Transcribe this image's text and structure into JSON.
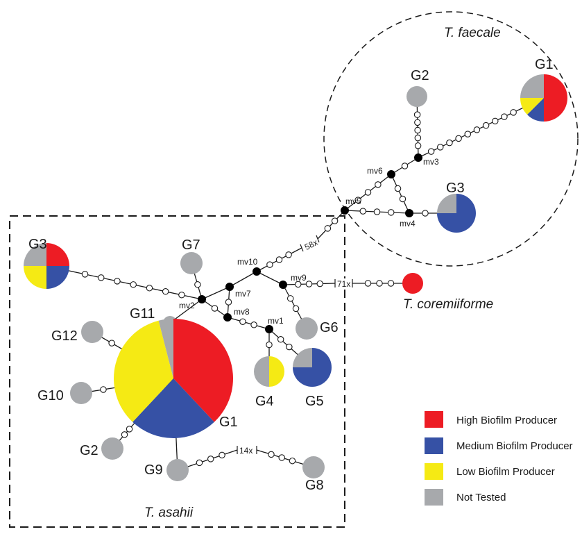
{
  "colors": {
    "high": "#ed1c24",
    "medium": "#3651a5",
    "low": "#f5ea14",
    "not_tested": "#a7a9ac",
    "median_vector": "#000000",
    "step": "#ffffff",
    "line": "#1a1a1a"
  },
  "clusters": {
    "faecale": "T. faecale",
    "asahii": "T. asahii",
    "coremiiforme": "T. coremiiforme"
  },
  "median_vectors": [
    "mv1",
    "mv2",
    "mv3",
    "mv4",
    "mv5",
    "mv6",
    "mv7",
    "mv8",
    "mv9",
    "mv10"
  ],
  "genotypes": {
    "f_G1": {
      "label": "G1",
      "group": "T. faecale",
      "composition": {
        "high": 0.5,
        "medium": 0.125,
        "low": 0.125,
        "not_tested": 0.25
      }
    },
    "f_G2": {
      "label": "G2",
      "group": "T. faecale",
      "composition": {
        "not_tested": 1
      }
    },
    "f_G3": {
      "label": "G3",
      "group": "T. faecale",
      "composition": {
        "medium": 0.75,
        "not_tested": 0.25
      }
    },
    "a_G3": {
      "label": "G3",
      "group": "T. asahii",
      "composition": {
        "high": 0.25,
        "medium": 0.25,
        "low": 0.25,
        "not_tested": 0.25
      }
    },
    "a_G7": {
      "label": "G7",
      "group": "T. asahii",
      "composition": {
        "not_tested": 1
      }
    },
    "a_G11": {
      "label": "G11",
      "group": "T. asahii",
      "composition": {
        "not_tested": 1
      }
    },
    "a_G12": {
      "label": "G12",
      "group": "T. asahii",
      "composition": {
        "not_tested": 1
      }
    },
    "a_G10": {
      "label": "G10",
      "group": "T. asahii",
      "composition": {
        "not_tested": 1
      }
    },
    "a_G1": {
      "label": "G1",
      "group": "T. asahii",
      "composition": {
        "high": 0.38,
        "medium": 0.24,
        "low": 0.34,
        "not_tested": 0.04
      }
    },
    "a_G2": {
      "label": "G2",
      "group": "T. asahii",
      "composition": {
        "not_tested": 1
      }
    },
    "a_G9": {
      "label": "G9",
      "group": "T. asahii",
      "composition": {
        "not_tested": 1
      }
    },
    "a_G8": {
      "label": "G8",
      "group": "T. asahii",
      "composition": {
        "not_tested": 1
      }
    },
    "a_G4": {
      "label": "G4",
      "group": "T. asahii",
      "composition": {
        "low": 0.5,
        "not_tested": 0.5
      }
    },
    "a_G5": {
      "label": "G5",
      "group": "T. asahii",
      "composition": {
        "medium": 0.75,
        "not_tested": 0.25
      }
    },
    "a_G6": {
      "label": "G6",
      "group": "T. asahii",
      "composition": {
        "not_tested": 1
      }
    },
    "c_G1": {
      "label": "",
      "group": "T. coremiiforme",
      "composition": {
        "high": 1
      }
    }
  },
  "step_labels": {
    "asahii_faecale": "58x",
    "asahii_coremiiforme": "71x",
    "g9_g8": "14x"
  },
  "legend": [
    {
      "key": "high",
      "label": "High Biofilm Producer"
    },
    {
      "key": "medium",
      "label": "Medium Biofilm Producer"
    },
    {
      "key": "low",
      "label": "Low Biofilm Producer"
    },
    {
      "key": "not_tested",
      "label": "Not Tested"
    }
  ]
}
